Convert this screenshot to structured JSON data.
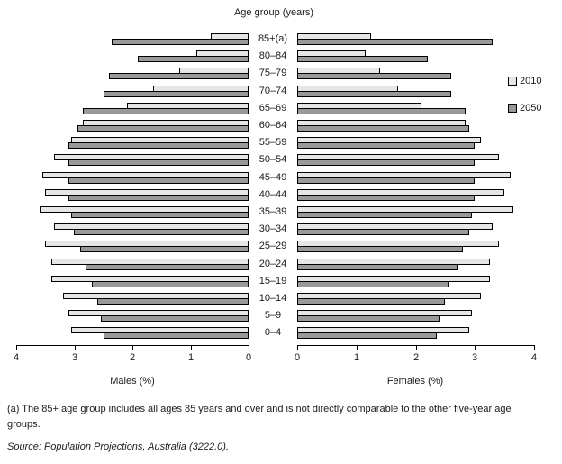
{
  "chart": {
    "title": "Age group (years)",
    "left_axis": {
      "label": "Males (%)",
      "ticks": [
        4,
        3,
        2,
        1,
        0
      ]
    },
    "right_axis": {
      "label": "Females (%)",
      "ticks": [
        0,
        1,
        2,
        3,
        4
      ]
    },
    "legend": [
      {
        "label": "2010",
        "color": "#e6e6e6"
      },
      {
        "label": "2050",
        "color": "#999999"
      }
    ],
    "colors": {
      "light_2010": "#e6e6e6",
      "dark_2050": "#999999",
      "bar_border": "#000000"
    }
  },
  "chart_data": {
    "type": "bar",
    "subtype": "population-pyramid",
    "title": "Age group (years)",
    "categories": [
      "85+(a)",
      "80–84",
      "75–79",
      "70–74",
      "65–69",
      "60–64",
      "55–59",
      "50–54",
      "45–49",
      "40–44",
      "35–39",
      "30–34",
      "25–29",
      "20–24",
      "15–19",
      "10–14",
      "5–9",
      "0–4"
    ],
    "series": [
      {
        "name": "Males 2010",
        "side": "left",
        "year": "2010",
        "values": [
          0.65,
          0.9,
          1.2,
          1.65,
          2.1,
          2.85,
          3.05,
          3.35,
          3.55,
          3.5,
          3.6,
          3.35,
          3.5,
          3.4,
          3.4,
          3.2,
          3.1,
          3.05
        ]
      },
      {
        "name": "Males 2050",
        "side": "left",
        "year": "2050",
        "values": [
          2.35,
          1.9,
          2.4,
          2.5,
          2.85,
          2.95,
          3.1,
          3.1,
          3.1,
          3.1,
          3.05,
          3.0,
          2.9,
          2.8,
          2.7,
          2.6,
          2.55,
          2.5
        ]
      },
      {
        "name": "Females 2010",
        "side": "right",
        "year": "2010",
        "values": [
          1.25,
          1.15,
          1.4,
          1.7,
          2.1,
          2.85,
          3.1,
          3.4,
          3.6,
          3.5,
          3.65,
          3.3,
          3.4,
          3.25,
          3.25,
          3.1,
          2.95,
          2.9
        ]
      },
      {
        "name": "Females 2050",
        "side": "right",
        "year": "2050",
        "values": [
          3.3,
          2.2,
          2.6,
          2.6,
          2.85,
          2.9,
          3.0,
          3.0,
          3.0,
          3.0,
          2.95,
          2.9,
          2.8,
          2.7,
          2.55,
          2.5,
          2.4,
          2.35
        ]
      }
    ],
    "xlabel_left": "Males (%)",
    "xlabel_right": "Females (%)",
    "xlim": [
      0,
      4
    ],
    "legend_entries": [
      "2010",
      "2050"
    ],
    "legend_position": "right",
    "grid": false
  },
  "footnotes": {
    "note_a": "(a) The 85+ age group includes all ages 85 years and over and is not directly comparable to the other five-year age groups.",
    "source": "Source: Population Projections, Australia (3222.0)."
  }
}
